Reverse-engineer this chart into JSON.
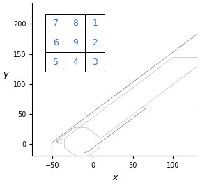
{
  "title": "",
  "xlabel": "x",
  "ylabel": "y",
  "xlim": [
    -75,
    130
  ],
  "ylim": [
    -20,
    235
  ],
  "xticks": [
    -50,
    0,
    50,
    100
  ],
  "yticks": [
    0,
    50,
    100,
    150,
    200
  ],
  "table_data": [
    [
      "7",
      "8",
      "1"
    ],
    [
      "6",
      "9",
      "2"
    ],
    [
      "5",
      "4",
      "3"
    ]
  ],
  "table_text_color": "#4472C4",
  "gray_color": "#888888",
  "black_color": "#111111",
  "figsize": [
    2.87,
    2.66
  ],
  "dpi": 100,
  "n_primes": 15000,
  "n_zeta": 20000
}
